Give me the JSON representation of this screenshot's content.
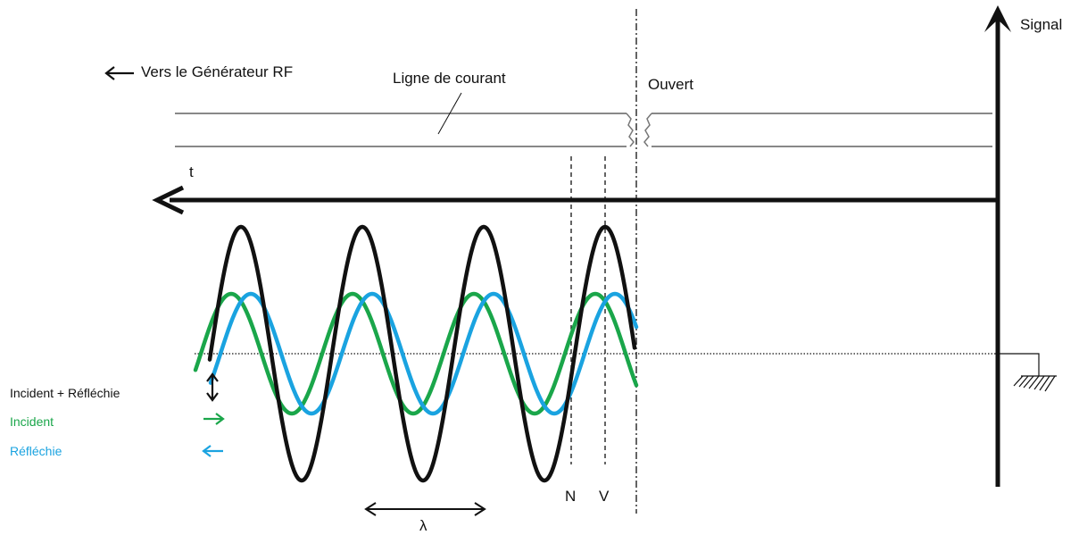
{
  "labels": {
    "signal_axis": "Signal",
    "generator": "Vers le Générateur RF",
    "current_line": "Ligne de courant",
    "open_end": "Ouvert",
    "time_axis": "t",
    "node": "N",
    "antinode": "V",
    "wavelength": "λ"
  },
  "legend": [
    {
      "label": "Incident + Réfléchie",
      "color": "#111111",
      "icon": "double-vertical-arrow-icon"
    },
    {
      "label": "Incident",
      "color": "#1aa64a",
      "icon": "right-arrow-icon"
    },
    {
      "label": "Réfléchie",
      "color": "#1aa3e0",
      "icon": "left-arrow-icon"
    }
  ],
  "waves": {
    "resultant_color": "#111111",
    "incident_color": "#1aa64a",
    "reflected_color": "#1aa3e0"
  },
  "icons": {
    "generator_arrow": "left-arrow-icon",
    "ground": "ground-icon"
  }
}
